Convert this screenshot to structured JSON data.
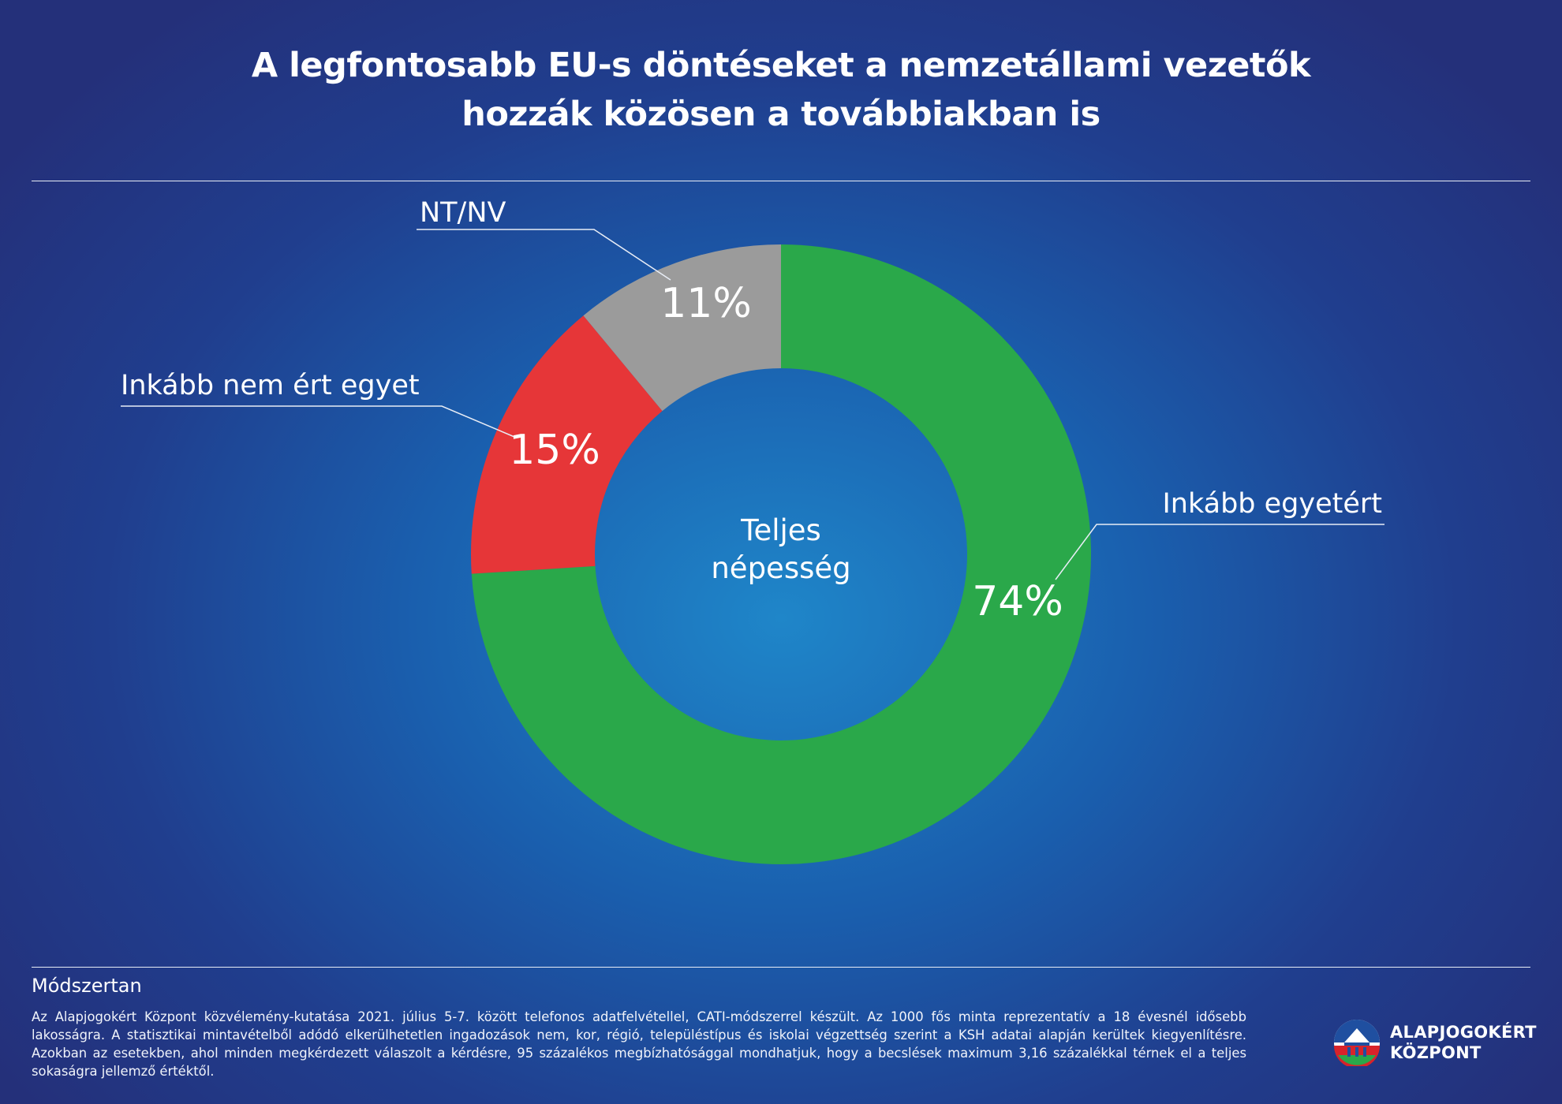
{
  "title": {
    "line1": "A legfontosabb EU-s döntéseket a nemzetállami vezetők",
    "line2": "hozzák közösen a továbbiakban is"
  },
  "chart_data": {
    "type": "pie",
    "variant": "donut",
    "center_label": [
      "Teljes",
      "népesség"
    ],
    "slices": [
      {
        "name": "Inkább egyetért",
        "value": 74,
        "label": "74%",
        "color": "#2aa84a"
      },
      {
        "name": "Inkább nem ért egyet",
        "value": 15,
        "label": "15%",
        "color": "#e63638"
      },
      {
        "name": "NT/NV",
        "value": 11,
        "label": "11%",
        "color": "#9b9b9b"
      }
    ]
  },
  "methodology": {
    "heading": "Módszertan",
    "text": "Az Alapjogokért Központ közvélemény-kutatása 2021. július 5-7. között telefonos adatfelvétellel, CATI-módszerrel készült. Az 1000 fős minta reprezentatív a 18 évesnél idősebb lakosságra. A statisztikai mintavételből adódó elkerülhetetlen ingadozások nem, kor, régió, településtípus és iskolai végzettség szerint a KSH adatai alapján kerültek kiegyenlítésre. Azokban az esetekben, ahol minden megkérdezett válaszolt a kérdésre, 95 százalékos megbízhatósággal mondhatjuk, hogy a becslések maximum 3,16 százalékkal térnek el a teljes sokaságra jellemző értéktől."
  },
  "logo": {
    "line1": "ALAPJOGOKÉRT",
    "line2": "KÖZPONT"
  },
  "colors": {
    "rule": "#e8edf6",
    "leader": "#e8edf6"
  }
}
